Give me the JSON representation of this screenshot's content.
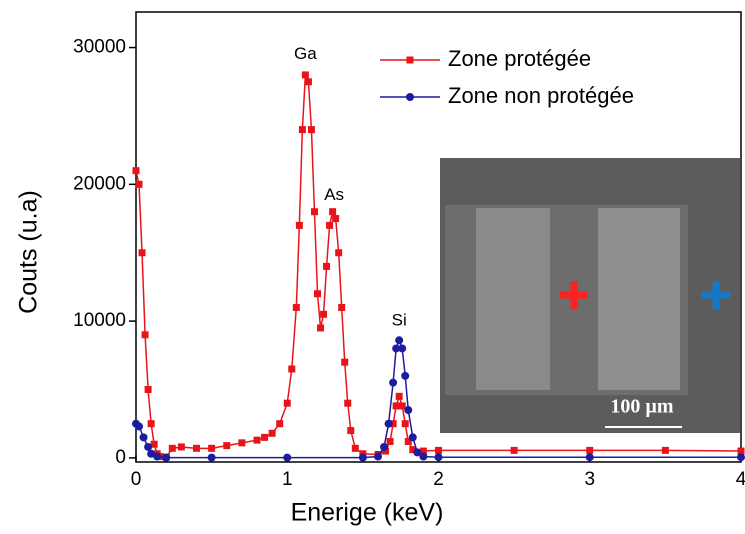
{
  "chart_data": {
    "type": "line",
    "xlabel": "Enerige (keV)",
    "ylabel": "Couts (u.a)",
    "xlim": [
      0,
      4
    ],
    "ylim": [
      -300,
      32600
    ],
    "xticks": [
      0,
      1,
      2,
      3,
      4
    ],
    "yticks": [
      0,
      10000,
      20000,
      30000
    ],
    "legend": "upper right",
    "annotations": [
      {
        "text": "Ga",
        "x": 1.12,
        "y": 29500
      },
      {
        "text": "As",
        "x": 1.31,
        "y": 19200
      },
      {
        "text": "Si",
        "x": 1.74,
        "y": 10000
      }
    ],
    "inset_scale": "100 µm",
    "series": [
      {
        "name": "Zone protégée",
        "color": "#e8141a",
        "marker": "square",
        "x": [
          0,
          0.02,
          0.04,
          0.06,
          0.08,
          0.1,
          0.12,
          0.14,
          0.16,
          0.2,
          0.24,
          0.3,
          0.4,
          0.5,
          0.6,
          0.7,
          0.8,
          0.85,
          0.9,
          0.95,
          1.0,
          1.03,
          1.06,
          1.08,
          1.1,
          1.12,
          1.14,
          1.16,
          1.18,
          1.2,
          1.22,
          1.24,
          1.26,
          1.28,
          1.3,
          1.32,
          1.34,
          1.36,
          1.38,
          1.4,
          1.42,
          1.45,
          1.5,
          1.6,
          1.65,
          1.68,
          1.7,
          1.72,
          1.74,
          1.76,
          1.78,
          1.8,
          1.83,
          1.9,
          2.0,
          2.5,
          3.0,
          3.5,
          4.0
        ],
        "values": [
          21000,
          20000,
          15000,
          9000,
          5000,
          2500,
          1000,
          300,
          100,
          50,
          700,
          800,
          700,
          700,
          900,
          1100,
          1300,
          1500,
          1800,
          2500,
          4000,
          6500,
          11000,
          17000,
          24000,
          28000,
          27500,
          24000,
          18000,
          12000,
          9500,
          10500,
          14000,
          17000,
          18000,
          17500,
          15000,
          11000,
          7000,
          4000,
          2000,
          700,
          300,
          250,
          500,
          1200,
          2500,
          3800,
          4500,
          3800,
          2500,
          1200,
          600,
          500,
          550,
          550,
          550,
          550,
          500
        ]
      },
      {
        "name": "Zone non protégée",
        "color": "#1c1c9e",
        "marker": "circle",
        "x": [
          0,
          0.02,
          0.05,
          0.08,
          0.1,
          0.14,
          0.2,
          0.5,
          1.0,
          1.5,
          1.6,
          1.64,
          1.67,
          1.7,
          1.72,
          1.74,
          1.76,
          1.78,
          1.8,
          1.83,
          1.86,
          1.9,
          2.0,
          3.0,
          4.0
        ],
        "values": [
          2500,
          2300,
          1500,
          800,
          300,
          100,
          20,
          20,
          20,
          20,
          100,
          800,
          2500,
          5500,
          8000,
          8600,
          8000,
          6000,
          3500,
          1500,
          400,
          100,
          50,
          50,
          50
        ]
      }
    ]
  }
}
